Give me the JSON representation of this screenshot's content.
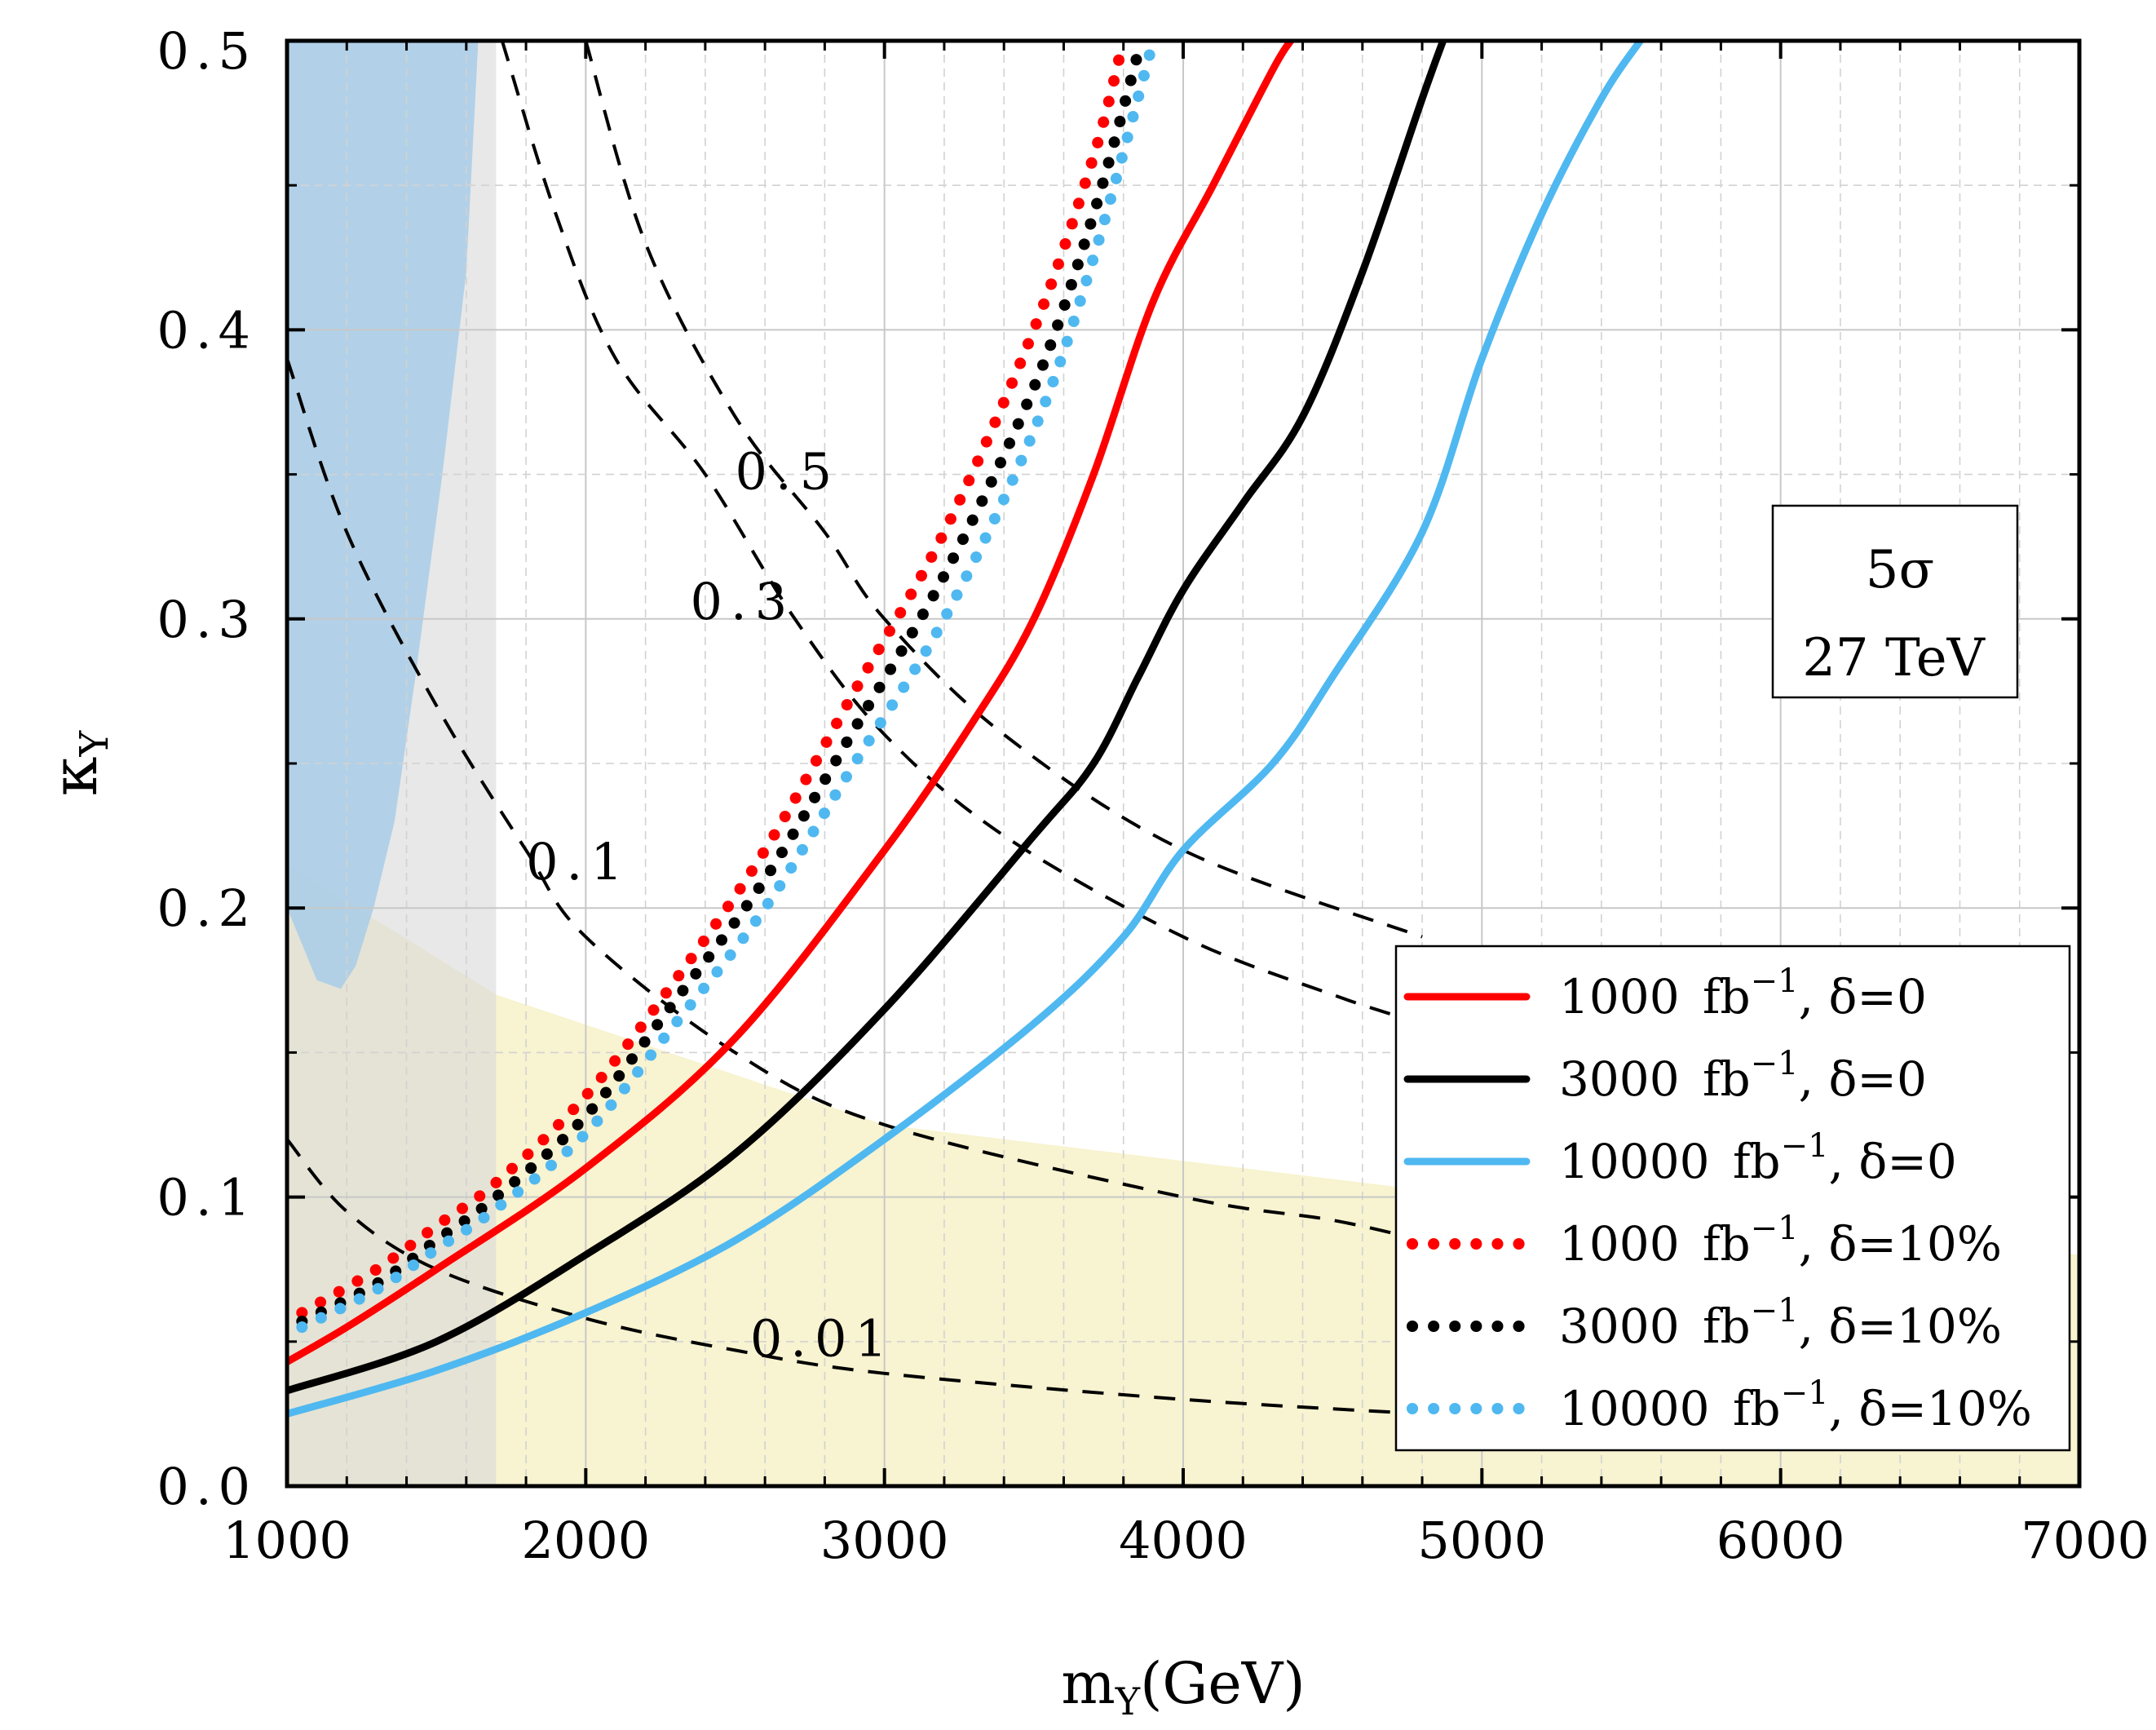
{
  "chart_data": {
    "type": "line",
    "title": "",
    "xlabel": "m",
    "xlabel_sub": "Y",
    "xlabel_unit": "(GeV)",
    "ylabel": "κ",
    "ylabel_sub": "Y",
    "xlim": [
      1000,
      7000
    ],
    "ylim": [
      0.0,
      0.5
    ],
    "grid": true,
    "x_ticks": [
      1000,
      2000,
      3000,
      4000,
      5000,
      6000,
      7000
    ],
    "x_tick_labels": [
      "1000",
      "2000",
      "3000",
      "4000",
      "5000",
      "6000",
      "7000"
    ],
    "y_ticks": [
      0.0,
      0.1,
      0.2,
      0.3,
      0.4,
      0.5
    ],
    "y_tick_labels": [
      "0.0",
      "0.1",
      "0.2",
      "0.3",
      "0.4",
      "0.5"
    ],
    "annotation_box": {
      "line1": "5σ",
      "line2": "27 TeV"
    },
    "shaded_regions": [
      {
        "name": "excluded-yellow",
        "color": "#f7f1c8",
        "points": [
          [
            1000,
            0.215
          ],
          [
            1700,
            0.17
          ],
          [
            3000,
            0.125
          ],
          [
            5000,
            0.1
          ],
          [
            7000,
            0.08
          ],
          [
            7000,
            0.0
          ],
          [
            1000,
            0.0
          ]
        ]
      },
      {
        "name": "excluded-gray",
        "color": "#d9d9d9",
        "points": [
          [
            1000,
            0.0
          ],
          [
            1000,
            0.5
          ],
          [
            1700,
            0.5
          ],
          [
            1700,
            0.0
          ]
        ]
      },
      {
        "name": "excluded-blue",
        "color": "#a8cde8",
        "points": [
          [
            1000,
            0.5
          ],
          [
            1640,
            0.5
          ],
          [
            1600,
            0.42
          ],
          [
            1520,
            0.35
          ],
          [
            1430,
            0.28
          ],
          [
            1360,
            0.23
          ],
          [
            1290,
            0.2
          ],
          [
            1230,
            0.18
          ],
          [
            1180,
            0.172
          ],
          [
            1100,
            0.175
          ],
          [
            1040,
            0.19
          ],
          [
            1000,
            0.2
          ]
        ]
      }
    ],
    "contours": [
      {
        "label": "0.01",
        "label_at": [
          2550,
          0.045
        ],
        "points": [
          [
            1000,
            0.12
          ],
          [
            1200,
            0.095
          ],
          [
            1500,
            0.075
          ],
          [
            2000,
            0.058
          ],
          [
            2500,
            0.047
          ],
          [
            3000,
            0.039
          ],
          [
            4000,
            0.03
          ],
          [
            4800,
            0.025
          ]
        ]
      },
      {
        "label": "0.1",
        "label_at": [
          1800,
          0.21
        ],
        "points": [
          [
            1000,
            0.39
          ],
          [
            1200,
            0.33
          ],
          [
            1500,
            0.27
          ],
          [
            1800,
            0.22
          ],
          [
            2000,
            0.19
          ],
          [
            2500,
            0.15
          ],
          [
            3000,
            0.125
          ],
          [
            4000,
            0.1
          ],
          [
            4500,
            0.092
          ],
          [
            4800,
            0.085
          ]
        ]
      },
      {
        "label": "0.3",
        "label_at": [
          2350,
          0.3
        ],
        "points": [
          [
            1720,
            0.5
          ],
          [
            1900,
            0.44
          ],
          [
            2100,
            0.39
          ],
          [
            2400,
            0.35
          ],
          [
            2700,
            0.3
          ],
          [
            3000,
            0.26
          ],
          [
            3400,
            0.225
          ],
          [
            4000,
            0.19
          ],
          [
            4500,
            0.17
          ],
          [
            4800,
            0.16
          ]
        ]
      },
      {
        "label": "0.5",
        "label_at": [
          2500,
          0.345
        ],
        "points": [
          [
            2000,
            0.5
          ],
          [
            2200,
            0.43
          ],
          [
            2500,
            0.37
          ],
          [
            2800,
            0.33
          ],
          [
            3000,
            0.3
          ],
          [
            3400,
            0.26
          ],
          [
            4000,
            0.22
          ],
          [
            4800,
            0.19
          ]
        ]
      }
    ],
    "series": [
      {
        "name": "1000 fb⁻¹, δ=0",
        "lumi": "1000",
        "delta": "δ=0",
        "color": "#ff0000",
        "style": "solid",
        "x": [
          1000,
          1200,
          1500,
          2000,
          2500,
          3000,
          3300,
          3500,
          3700,
          3900,
          4100,
          4300,
          4360
        ],
        "y": [
          0.043,
          0.055,
          0.075,
          0.11,
          0.155,
          0.22,
          0.265,
          0.3,
          0.35,
          0.41,
          0.45,
          0.49,
          0.5
        ]
      },
      {
        "name": "3000 fb⁻¹, δ=0",
        "lumi": "3000",
        "delta": "δ=0",
        "color": "#000000",
        "style": "solid",
        "x": [
          1000,
          1500,
          2000,
          2500,
          3000,
          3500,
          3700,
          3850,
          4000,
          4200,
          4400,
          4600,
          4800,
          4870
        ],
        "y": [
          0.033,
          0.05,
          0.08,
          0.115,
          0.165,
          0.225,
          0.25,
          0.28,
          0.31,
          0.34,
          0.37,
          0.42,
          0.48,
          0.5
        ]
      },
      {
        "name": "10000 fb⁻¹, δ=0",
        "lumi": "10000",
        "delta": "δ=0",
        "color": "#4fb8f0",
        "style": "solid",
        "x": [
          1000,
          1500,
          2000,
          2500,
          3000,
          3500,
          3800,
          4000,
          4300,
          4500,
          4800,
          5000,
          5200,
          5400,
          5530
        ],
        "y": [
          0.025,
          0.04,
          0.06,
          0.085,
          0.12,
          0.16,
          0.19,
          0.22,
          0.25,
          0.28,
          0.33,
          0.39,
          0.44,
          0.48,
          0.5
        ]
      },
      {
        "name": "1000 fb⁻¹, δ=10%",
        "lumi": "1000",
        "delta": "δ=10%",
        "color": "#ff0000",
        "style": "dotted",
        "x": [
          1050,
          1300,
          1500,
          1700,
          2000,
          2300,
          2600,
          2900,
          3200,
          3500,
          3700,
          3800
        ],
        "y": [
          0.06,
          0.075,
          0.09,
          0.105,
          0.135,
          0.175,
          0.22,
          0.275,
          0.33,
          0.4,
          0.46,
          0.5
        ]
      },
      {
        "name": "3000 fb⁻¹, δ=10%",
        "lumi": "3000",
        "delta": "δ=10%",
        "color": "#000000",
        "style": "dotted",
        "x": [
          1050,
          1300,
          1500,
          1700,
          2000,
          2300,
          2600,
          2900,
          3200,
          3500,
          3700,
          3860
        ],
        "y": [
          0.057,
          0.07,
          0.085,
          0.1,
          0.128,
          0.168,
          0.21,
          0.262,
          0.315,
          0.38,
          0.44,
          0.5
        ]
      },
      {
        "name": "10000 fb⁻¹, δ=10%",
        "lumi": "10000",
        "delta": "δ=10%",
        "color": "#4fb8f0",
        "style": "dotted",
        "x": [
          1050,
          1300,
          1500,
          1700,
          2000,
          2300,
          2600,
          2900,
          3200,
          3500,
          3700,
          3900
        ],
        "y": [
          0.055,
          0.068,
          0.082,
          0.096,
          0.122,
          0.16,
          0.2,
          0.25,
          0.3,
          0.365,
          0.425,
          0.5
        ]
      }
    ],
    "legend": {
      "position": "bottom-right",
      "unit": "fb",
      "unit_sup": "−1",
      "entries": [
        {
          "lumi": "1000",
          "delta": "δ=0",
          "color": "#ff0000",
          "style": "solid"
        },
        {
          "lumi": "3000",
          "delta": "δ=0",
          "color": "#000000",
          "style": "solid"
        },
        {
          "lumi": "10000",
          "delta": "δ=0",
          "color": "#4fb8f0",
          "style": "solid"
        },
        {
          "lumi": "1000",
          "delta": "δ=10%",
          "color": "#ff0000",
          "style": "dotted"
        },
        {
          "lumi": "3000",
          "delta": "δ=10%",
          "color": "#000000",
          "style": "dotted"
        },
        {
          "lumi": "10000",
          "delta": "δ=10%",
          "color": "#4fb8f0",
          "style": "dotted"
        }
      ]
    }
  }
}
